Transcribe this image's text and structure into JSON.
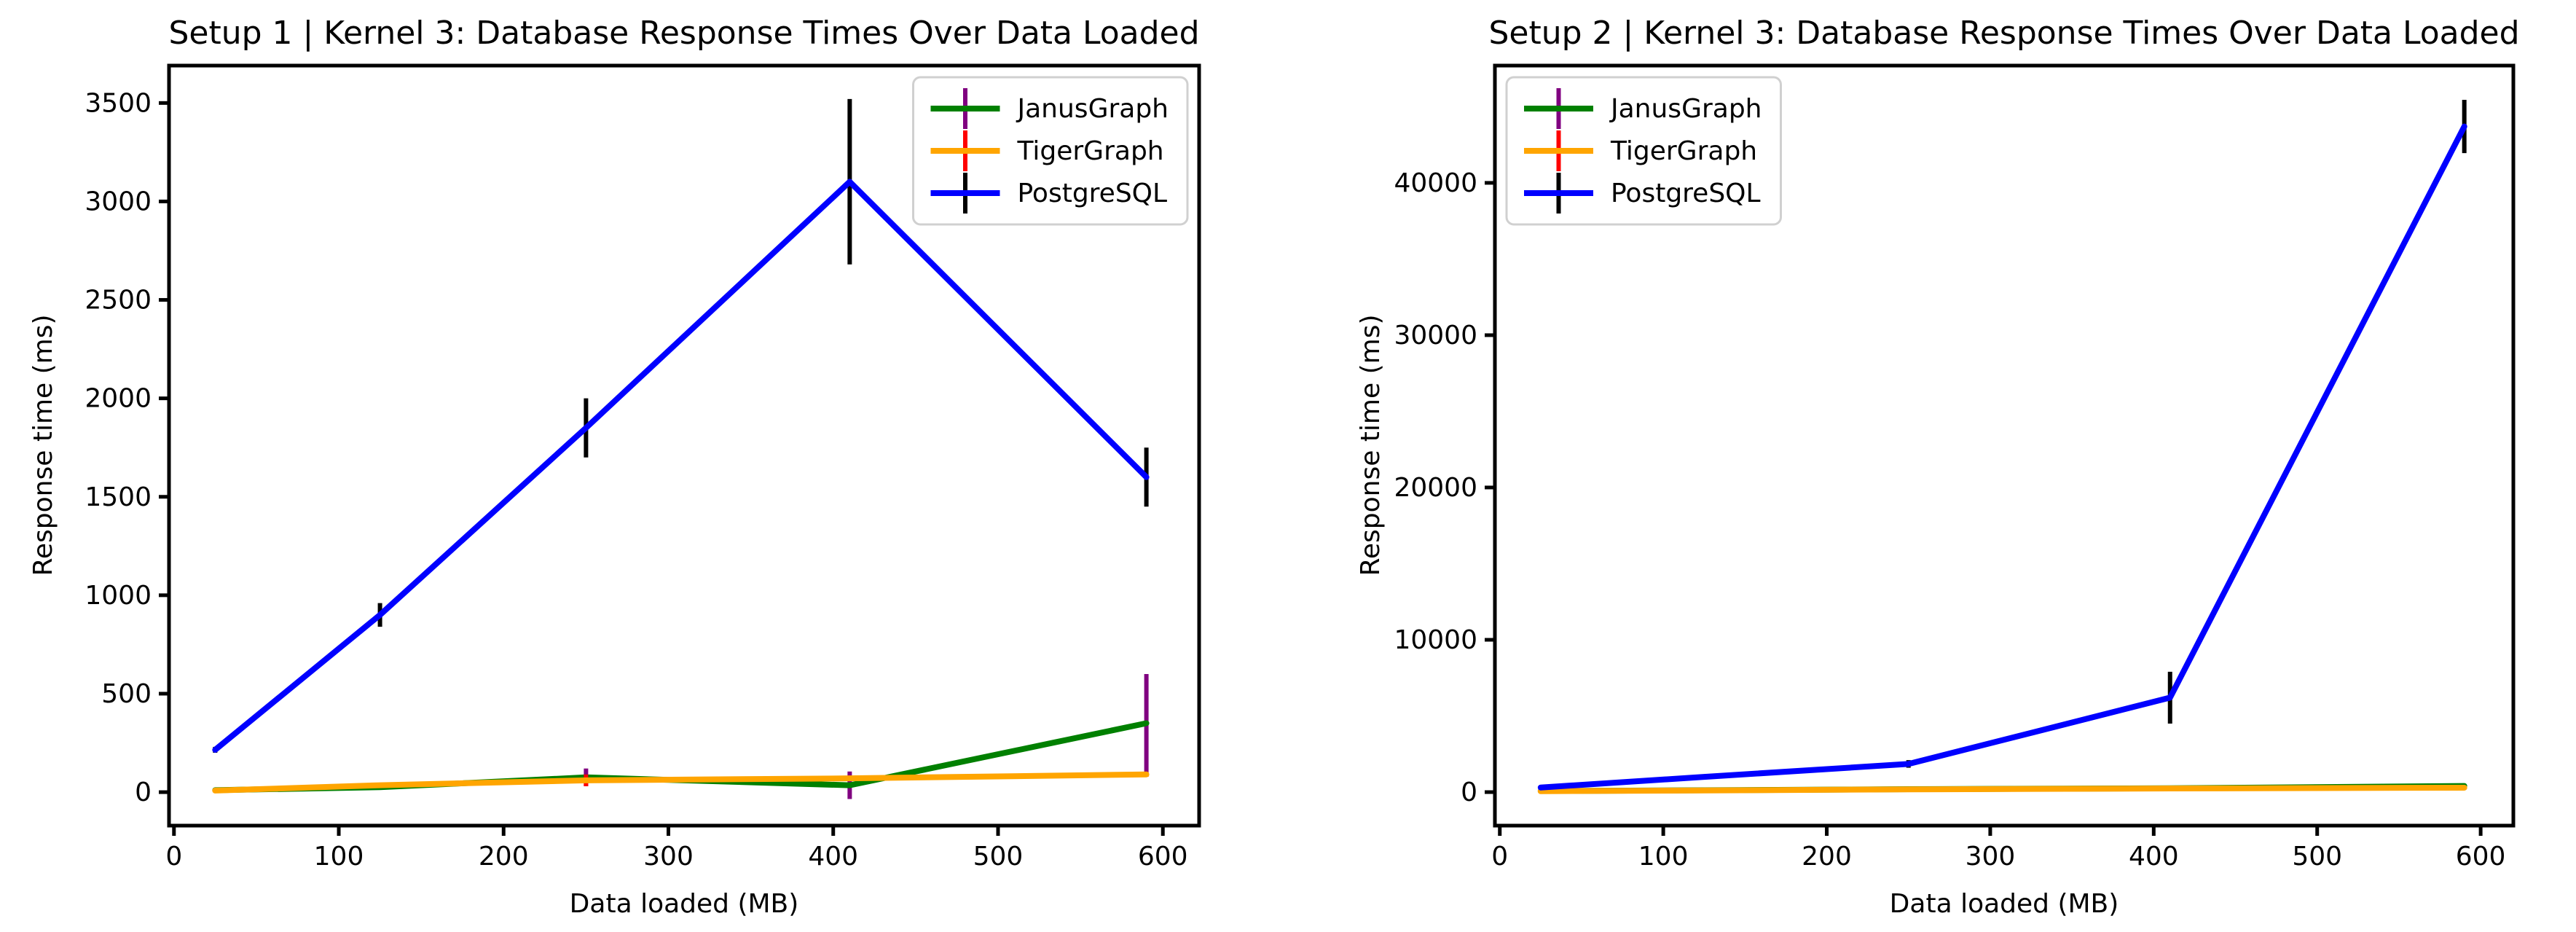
{
  "figure": {
    "background": "#ffffff",
    "text_color": "#000000"
  },
  "colors": {
    "janusgraph_line": "#008000",
    "janusgraph_error": "#800080",
    "tigergraph_line": "#FFA500",
    "tigergraph_error": "#FF0000",
    "postgresql_line": "#0000FF",
    "postgresql_error": "#000000",
    "legend_border": "#d0d0d0",
    "axis_color": "#000000"
  },
  "chart_data": [
    {
      "type": "line",
      "title": "Setup 1 | Kernel 3: Database Response Times Over Data Loaded",
      "xlabel": "Data loaded (MB)",
      "ylabel": "Response time (ms)",
      "x": [
        25,
        125,
        250,
        410,
        590
      ],
      "series": [
        {
          "name": "JanusGraph",
          "color": "#008000",
          "ecolor": "#800080",
          "values": [
            10,
            25,
            75,
            35,
            350
          ],
          "yerr": [
            4,
            6,
            45,
            70,
            250
          ]
        },
        {
          "name": "TigerGraph",
          "color": "#FFA500",
          "ecolor": "#FF0000",
          "values": [
            8,
            35,
            60,
            70,
            90
          ],
          "yerr": [
            3,
            5,
            30,
            8,
            12
          ]
        },
        {
          "name": "PostgreSQL",
          "color": "#0000FF",
          "ecolor": "#000000",
          "values": [
            215,
            900,
            1850,
            3100,
            1600
          ],
          "yerr": [
            15,
            60,
            150,
            420,
            150
          ]
        }
      ],
      "xlim": [
        -3,
        622
      ],
      "ylim": [
        -170,
        3690
      ],
      "xticks": [
        0,
        100,
        200,
        300,
        400,
        500,
        600
      ],
      "yticks": [
        0,
        500,
        1000,
        1500,
        2000,
        2500,
        3000,
        3500
      ],
      "legend_position": "top-right",
      "grid": false
    },
    {
      "type": "line",
      "title": "Setup 2 | Kernel 3: Database Response Times Over Data Loaded",
      "xlabel": "Data loaded (MB)",
      "ylabel": "Response time (ms)",
      "x": [
        25,
        125,
        250,
        410,
        590
      ],
      "series": [
        {
          "name": "JanusGraph",
          "color": "#008000",
          "ecolor": "#800080",
          "values": [
            70,
            120,
            190,
            250,
            400
          ],
          "yerr": [
            10,
            15,
            25,
            35,
            60
          ]
        },
        {
          "name": "TigerGraph",
          "color": "#FFA500",
          "ecolor": "#FF0000",
          "values": [
            60,
            110,
            180,
            240,
            290
          ],
          "yerr": [
            5,
            10,
            15,
            20,
            30
          ]
        },
        {
          "name": "PostgreSQL",
          "color": "#0000FF",
          "ecolor": "#000000",
          "values": [
            300,
            1000,
            1850,
            6200,
            43700
          ],
          "yerr": [
            100,
            150,
            250,
            1700,
            1750
          ]
        }
      ],
      "xlim": [
        -3,
        620
      ],
      "ylim": [
        -2200,
        47700
      ],
      "xticks": [
        0,
        100,
        200,
        300,
        400,
        500,
        600
      ],
      "yticks": [
        0,
        10000,
        20000,
        30000,
        40000
      ],
      "legend_position": "top-left",
      "grid": false
    }
  ]
}
